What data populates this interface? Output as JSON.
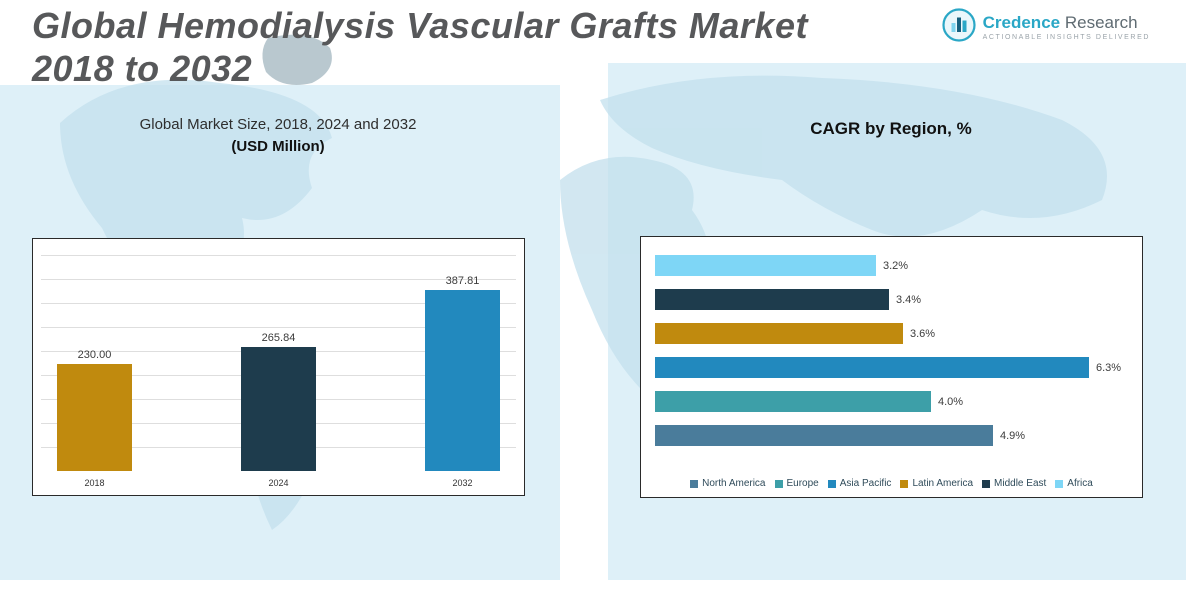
{
  "header": {
    "title_line1": "Global Hemodialysis Vascular Grafts Market",
    "title_line2": "2018 to 2032",
    "logo": {
      "word1": "Credence",
      "word2": "Research",
      "tagline": "Actionable Insights Delivered"
    }
  },
  "chart_data": [
    {
      "type": "bar",
      "orientation": "vertical",
      "title": "Global Market Size, 2018, 2024 and 2032",
      "subtitle": "(USD Million)",
      "categories": [
        "2018",
        "2024",
        "2032"
      ],
      "values": [
        230.0,
        265.84,
        387.81
      ],
      "value_labels": [
        "230.00",
        "265.84",
        "387.81"
      ],
      "colors": [
        "#c08a0e",
        "#1e3c4d",
        "#2289be"
      ],
      "ylim": [
        0,
        450
      ],
      "grid": true,
      "unit": "USD Million"
    },
    {
      "type": "bar",
      "orientation": "horizontal",
      "title": "CAGR by Region, %",
      "categories": [
        "Africa",
        "Middle East",
        "Latin America",
        "Asia Pacific",
        "Europe",
        "North America"
      ],
      "values": [
        3.2,
        3.4,
        3.6,
        6.3,
        4.0,
        4.9
      ],
      "value_labels": [
        "3.2%",
        "3.4%",
        "3.6%",
        "6.3%",
        "4.0%",
        "4.9%"
      ],
      "colors": [
        "#7ed6f6",
        "#1e3c4d",
        "#c08a0e",
        "#2289be",
        "#3d9fa8",
        "#4a7c9b"
      ],
      "xlim": [
        0,
        6.6
      ],
      "grid": false,
      "legend_position": "bottom",
      "legend": [
        {
          "label": "North America",
          "color": "#4a7c9b"
        },
        {
          "label": "Europe",
          "color": "#3d9fa8"
        },
        {
          "label": "Asia Pacific",
          "color": "#2289be"
        },
        {
          "label": "Latin America",
          "color": "#c08a0e"
        },
        {
          "label": "Middle East",
          "color": "#1e3c4d"
        },
        {
          "label": "Africa",
          "color": "#7ed6f6"
        }
      ]
    }
  ]
}
